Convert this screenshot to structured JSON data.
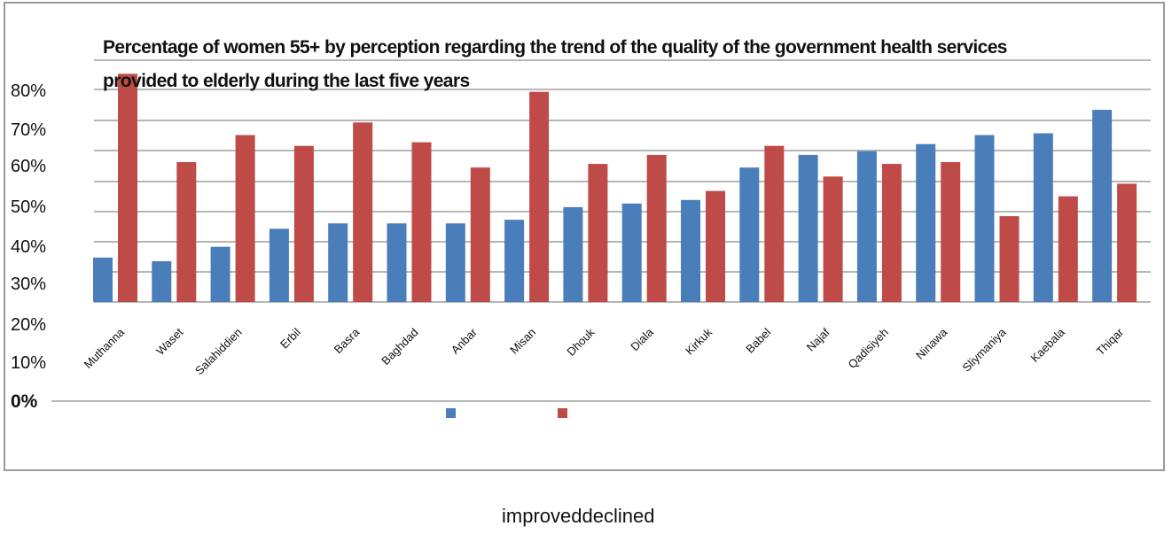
{
  "chart_data": {
    "type": "bar",
    "title_line1": "Percentage of women 55+ by perception regarding the trend of the quality of the government health services",
    "title_line2": "provided to elderly during the last five years",
    "categories": [
      "Muthanna",
      "Waset",
      "Salahiddien",
      "Erbil",
      "Basra",
      "Baghdad",
      "Anbar",
      "Misan",
      "Dhouk",
      "Diala",
      "Kirkuk",
      "Babel",
      "Najaf",
      "Qadisiyeh",
      "Ninawa",
      "Sliymaniya",
      "Kaebala",
      "Thiqar"
    ],
    "y_ticks": [
      "80%",
      "70%",
      "60%",
      "50%",
      "40%",
      "30%",
      "20%",
      "10%",
      "0%"
    ],
    "series": [
      {
        "name": "improved",
        "color": "#4a7ebb",
        "values": [
          30,
          29,
          33,
          38,
          39.5,
          39.5,
          39.5,
          40.5,
          44,
          45,
          46,
          55,
          58.5,
          59.5,
          61.5,
          64,
          64.5,
          71
        ]
      },
      {
        "name": "declined",
        "color": "#be4b48",
        "values": [
          81,
          56.5,
          64,
          61,
          67.5,
          62,
          55,
          76,
          56,
          58.5,
          48.5,
          61,
          52.5,
          56,
          56.5,
          41.5,
          47,
          50.5
        ]
      }
    ],
    "legend_text": "improveddeclined",
    "legend_placement": "bottom"
  }
}
